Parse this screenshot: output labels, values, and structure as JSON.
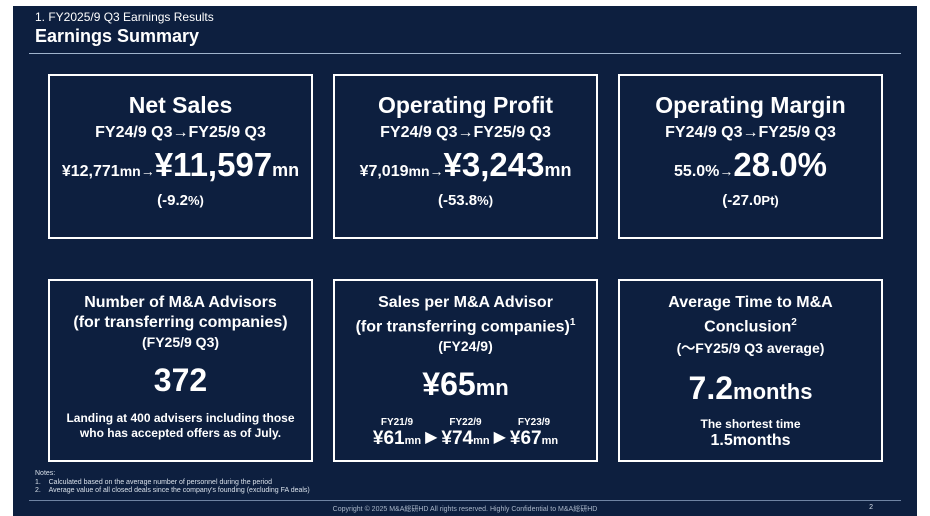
{
  "header": {
    "section": "1. FY2025/9 Q3 Earnings Results",
    "title": "Earnings Summary"
  },
  "net_sales": {
    "title": "Net Sales",
    "period": "FY24/9 Q3→FY25/9 Q3",
    "prev": "¥12,771",
    "prev_unit": "mn",
    "arrow": "→",
    "curr": "¥11,597",
    "curr_unit": "mn",
    "change_open": "(-9.2",
    "change_unit": "%)"
  },
  "operating_profit": {
    "title": "Operating Profit",
    "period": "FY24/9 Q3→FY25/9 Q3",
    "prev": "¥7,019",
    "prev_unit": "mn",
    "arrow": "→",
    "curr": "¥3,243",
    "curr_unit": "mn",
    "change_open": "(-53.8",
    "change_unit": "%)"
  },
  "operating_margin": {
    "title": "Operating Margin",
    "period": "FY24/9 Q3→FY25/9 Q3",
    "prev": "55.0%",
    "arrow": "→",
    "curr": "28.0%",
    "change_open": "(-27.0",
    "change_unit": "Pt)"
  },
  "advisors": {
    "title_line1": "Number of M&A Advisors",
    "title_line2": "(for transferring companies)",
    "period": "(FY25/9 Q3)",
    "value": "372",
    "note_line1": "Landing at 400 advisers including those",
    "note_line2": "who has accepted offers as of July."
  },
  "sales_per_advisor": {
    "title_line1": "Sales per M&A Advisor",
    "title_line2": "(for transferring companies)",
    "title_sup": "1",
    "period": "(FY24/9)",
    "value": "¥65",
    "value_unit": "mn",
    "history": [
      {
        "label": "FY21/9",
        "value": "¥61",
        "unit": "mn"
      },
      {
        "label": "FY22/9",
        "value": "¥74",
        "unit": "mn"
      },
      {
        "label": "FY23/9",
        "value": "¥67",
        "unit": "mn"
      }
    ],
    "triangle": "▶"
  },
  "avg_time": {
    "title_line1": "Average Time to M&A",
    "title_line2": "Conclusion",
    "title_sup": "2",
    "period": "(～FY25/9 Q3 average)",
    "value": "7.2",
    "value_unit": "months",
    "shortest_label": "The shortest time",
    "shortest_value": "1.5months"
  },
  "notes": {
    "heading": "Notes:",
    "items": [
      "1.    Calculated based on the average number of personnel during the period",
      "2.    Average value of all closed deals since the company's founding (excluding FA deals)"
    ]
  },
  "footer": {
    "copyright": "Copyright © 2025 M&A総研HD All rights reserved. Highly Confidential to M&A総研HD",
    "page": "2"
  }
}
